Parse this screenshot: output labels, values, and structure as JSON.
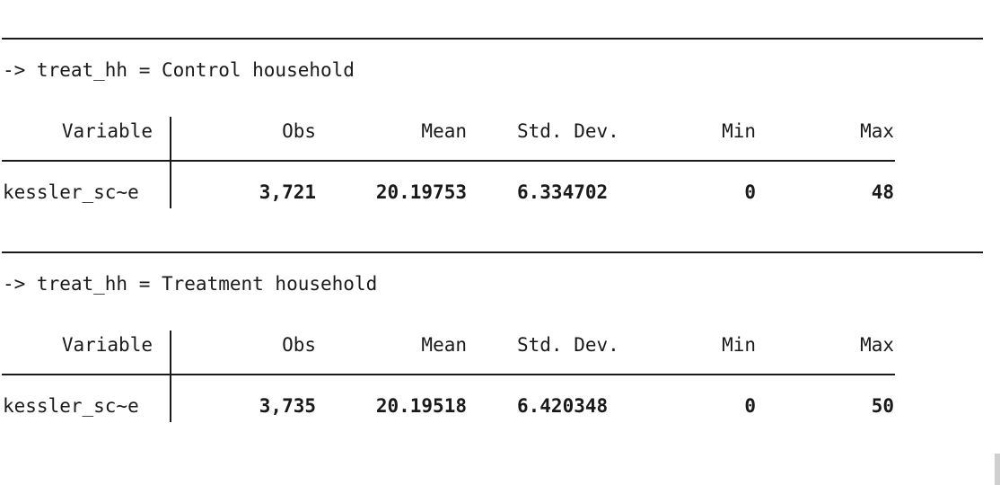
{
  "groups": [
    {
      "header": "-> treat_hh = Control household",
      "columns": {
        "variable": "Variable",
        "obs": "Obs",
        "mean": "Mean",
        "sd": "Std. Dev.",
        "min": "Min",
        "max": "Max"
      },
      "row": {
        "variable": "kessler_sc~e",
        "obs": "3,721",
        "mean": "20.19753",
        "sd": "6.334702",
        "min": "0",
        "max": "48"
      }
    },
    {
      "header": "-> treat_hh = Treatment household",
      "columns": {
        "variable": "Variable",
        "obs": "Obs",
        "mean": "Mean",
        "sd": "Std. Dev.",
        "min": "Min",
        "max": "Max"
      },
      "row": {
        "variable": "kessler_sc~e",
        "obs": "3,735",
        "mean": "20.19518",
        "sd": "6.420348",
        "min": "0",
        "max": "50"
      }
    }
  ]
}
